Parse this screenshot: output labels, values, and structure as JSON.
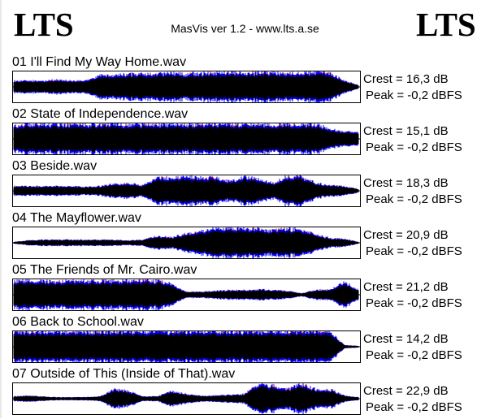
{
  "header": {
    "logo_left": "LTS",
    "logo_right": "LTS",
    "title": "MasVis ver 1.2 - www.lts.a.se"
  },
  "colors": {
    "left_channel": "#ff0000",
    "right_channel": "#0000ff",
    "sum": "#000000"
  },
  "tracks": [
    {
      "title": "01 I'll Find My Way Home.wav",
      "crest": "Crest = 16,3 dB",
      "peak": "Peak = -0,2 dBFS",
      "envelope": [
        0.4,
        0.4,
        0.4,
        0.45,
        0.4,
        0.4,
        0.75,
        0.8,
        0.8,
        0.85,
        0.85,
        0.9,
        0.85,
        0.9,
        0.9,
        0.95,
        0.9,
        0.95,
        0.95,
        0.9,
        0.9,
        0.95,
        0.9,
        0.4,
        0.1
      ]
    },
    {
      "title": "02 State of Independence.wav",
      "crest": "Crest = 15,1 dB",
      "peak": "Peak = -0,2 dBFS",
      "envelope": [
        0.95,
        0.95,
        0.95,
        0.95,
        0.95,
        0.95,
        0.95,
        0.95,
        0.95,
        0.95,
        0.95,
        0.95,
        0.95,
        0.95,
        0.95,
        0.95,
        0.95,
        0.95,
        0.95,
        0.95,
        0.95,
        0.95,
        0.6,
        0.5,
        0.4
      ]
    },
    {
      "title": "03 Beside.wav",
      "crest": "Crest = 18,3 dB",
      "peak": "Peak = -0,2 dBFS",
      "envelope": [
        0.3,
        0.3,
        0.3,
        0.3,
        0.3,
        0.25,
        0.3,
        0.45,
        0.5,
        0.35,
        0.85,
        0.85,
        0.9,
        0.85,
        0.9,
        0.6,
        0.9,
        0.8,
        0.5,
        0.95,
        0.95,
        0.5,
        0.35,
        0.3,
        0.1
      ]
    },
    {
      "title": "04 The Mayflower.wav",
      "crest": "Crest = 20,9 dB",
      "peak": "Peak = -0,2 dBFS",
      "envelope": [
        0.05,
        0.15,
        0.2,
        0.2,
        0.2,
        0.2,
        0.2,
        0.2,
        0.15,
        0.2,
        0.45,
        0.35,
        0.6,
        0.75,
        0.95,
        0.95,
        0.95,
        0.85,
        0.8,
        0.9,
        0.85,
        0.55,
        0.3,
        0.25,
        0.05
      ]
    },
    {
      "title": "05 The Friends of Mr. Cairo.wav",
      "crest": "Crest = 21,2 dB",
      "peak": "Peak = -0,2 dBFS",
      "envelope": [
        0.9,
        0.9,
        0.9,
        0.85,
        0.9,
        0.9,
        0.9,
        0.9,
        0.9,
        0.95,
        0.9,
        0.7,
        0.2,
        0.2,
        0.25,
        0.3,
        0.3,
        0.35,
        0.3,
        0.25,
        0.1,
        0.3,
        0.35,
        0.8,
        0.3
      ]
    },
    {
      "title": "06 Back to School.wav",
      "crest": "Crest = 14,2 dB",
      "peak": "Peak = -0,2 dBFS",
      "envelope": [
        1,
        1,
        1,
        1,
        1,
        1,
        1,
        1,
        1,
        1,
        1,
        1,
        1,
        1,
        1,
        1,
        1,
        1,
        1,
        1,
        1,
        1,
        1,
        0.1,
        0.05
      ]
    },
    {
      "title": "07 Outside of This (Inside of That).wav",
      "crest": "Crest = 22,9 dB",
      "peak": "Peak = -0,2 dBFS",
      "envelope": [
        0.15,
        0.2,
        0.15,
        0.1,
        0.1,
        0.1,
        0.15,
        0.6,
        0.5,
        0.15,
        0.15,
        0.5,
        0.3,
        0.2,
        0.2,
        0.25,
        0.3,
        0.95,
        0.85,
        0.6,
        0.95,
        0.6,
        0.6,
        0.2,
        0.1
      ]
    }
  ]
}
